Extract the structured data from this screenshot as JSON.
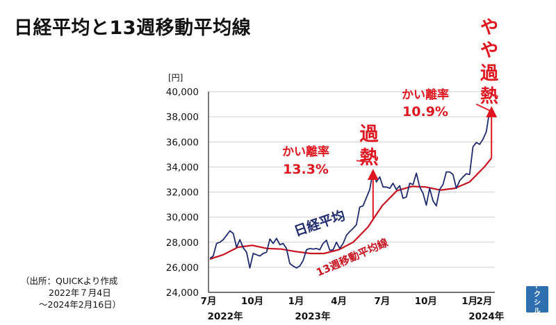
{
  "title": "日経平均と13週移動平均線",
  "source": {
    "line1": "（出所：QUICKより作成",
    "line2": "2022年７月4日",
    "line3": "～2024年2月16日）"
  },
  "logo_text": [
    "ト",
    "ク",
    "シ",
    "ル"
  ],
  "colors": {
    "nikkei": "#1f2a6e",
    "ma13": "#c8101e",
    "annotation": "#e0151f",
    "grid": "#cfcfcf"
  },
  "chart_data": {
    "type": "line",
    "yunit": "[円]",
    "ylim": [
      24000,
      40000
    ],
    "yticks": [
      24000,
      26000,
      28000,
      30000,
      32000,
      34000,
      36000,
      38000,
      40000
    ],
    "ytick_labels": [
      "24,000",
      "26,000",
      "28,000",
      "30,000",
      "32,000",
      "34,000",
      "36,000",
      "38,000",
      "40,000"
    ],
    "xlim": [
      "2022-07-01",
      "2024-02-23"
    ],
    "xticks": [
      {
        "date": "2022-07-01",
        "label": "7月",
        "year": "2022年"
      },
      {
        "date": "2022-10-01",
        "label": "10月",
        "year": ""
      },
      {
        "date": "2023-01-01",
        "label": "1月",
        "year": "2023年"
      },
      {
        "date": "2023-04-01",
        "label": "4月",
        "year": ""
      },
      {
        "date": "2023-07-01",
        "label": "7月",
        "year": ""
      },
      {
        "date": "2023-10-01",
        "label": "10月",
        "year": ""
      },
      {
        "date": "2024-01-01",
        "label": "1月",
        "year": "2024年"
      },
      {
        "date": "2024-02-01",
        "label": "2月",
        "year": ""
      }
    ],
    "grid": "horizontal",
    "series": [
      {
        "name": "日経平均",
        "values": [
          [
            "2022-07-04",
            26700
          ],
          [
            "2022-07-11",
            26900
          ],
          [
            "2022-07-18",
            27900
          ],
          [
            "2022-07-25",
            28000
          ],
          [
            "2022-08-01",
            28200
          ],
          [
            "2022-08-08",
            28550
          ],
          [
            "2022-08-15",
            28900
          ],
          [
            "2022-08-22",
            28700
          ],
          [
            "2022-08-29",
            27600
          ],
          [
            "2022-09-05",
            28200
          ],
          [
            "2022-09-12",
            27550
          ],
          [
            "2022-09-19",
            27200
          ],
          [
            "2022-09-26",
            25950
          ],
          [
            "2022-10-03",
            27100
          ],
          [
            "2022-10-10",
            27000
          ],
          [
            "2022-10-17",
            26900
          ],
          [
            "2022-10-24",
            27100
          ],
          [
            "2022-10-31",
            27200
          ],
          [
            "2022-11-07",
            28250
          ],
          [
            "2022-11-14",
            27900
          ],
          [
            "2022-11-21",
            28300
          ],
          [
            "2022-11-28",
            27800
          ],
          [
            "2022-12-05",
            27900
          ],
          [
            "2022-12-12",
            27500
          ],
          [
            "2022-12-19",
            26300
          ],
          [
            "2022-12-26",
            26100
          ],
          [
            "2023-01-02",
            25950
          ],
          [
            "2023-01-09",
            26100
          ],
          [
            "2023-01-16",
            26550
          ],
          [
            "2023-01-23",
            27400
          ],
          [
            "2023-01-30",
            27500
          ],
          [
            "2023-02-06",
            27450
          ],
          [
            "2023-02-13",
            27500
          ],
          [
            "2023-02-20",
            27400
          ],
          [
            "2023-02-27",
            27900
          ],
          [
            "2023-03-06",
            28150
          ],
          [
            "2023-03-13",
            27350
          ],
          [
            "2023-03-20",
            27400
          ],
          [
            "2023-03-27",
            28000
          ],
          [
            "2023-04-03",
            27500
          ],
          [
            "2023-04-10",
            27900
          ],
          [
            "2023-04-17",
            28550
          ],
          [
            "2023-04-24",
            28850
          ],
          [
            "2023-05-01",
            29100
          ],
          [
            "2023-05-08",
            29400
          ],
          [
            "2023-05-15",
            30800
          ],
          [
            "2023-05-22",
            30900
          ],
          [
            "2023-05-29",
            31550
          ],
          [
            "2023-06-05",
            32200
          ],
          [
            "2023-06-12",
            33700
          ],
          [
            "2023-06-19",
            32800
          ],
          [
            "2023-06-26",
            33200
          ],
          [
            "2023-07-03",
            32400
          ],
          [
            "2023-07-10",
            32400
          ],
          [
            "2023-07-17",
            32300
          ],
          [
            "2023-07-24",
            32700
          ],
          [
            "2023-07-31",
            32200
          ],
          [
            "2023-08-07",
            32500
          ],
          [
            "2023-08-14",
            31500
          ],
          [
            "2023-08-21",
            31600
          ],
          [
            "2023-08-28",
            32700
          ],
          [
            "2023-09-04",
            32600
          ],
          [
            "2023-09-11",
            33500
          ],
          [
            "2023-09-18",
            32400
          ],
          [
            "2023-09-25",
            31900
          ],
          [
            "2023-10-02",
            30950
          ],
          [
            "2023-10-09",
            32300
          ],
          [
            "2023-10-16",
            31300
          ],
          [
            "2023-10-23",
            30900
          ],
          [
            "2023-10-30",
            32200
          ],
          [
            "2023-11-06",
            32600
          ],
          [
            "2023-11-13",
            33600
          ],
          [
            "2023-11-20",
            33600
          ],
          [
            "2023-11-27",
            33400
          ],
          [
            "2023-12-04",
            32300
          ],
          [
            "2023-12-11",
            32900
          ],
          [
            "2023-12-18",
            33200
          ],
          [
            "2023-12-25",
            33450
          ],
          [
            "2024-01-01",
            33400
          ],
          [
            "2024-01-08",
            35600
          ],
          [
            "2024-01-15",
            35950
          ],
          [
            "2024-01-22",
            35800
          ],
          [
            "2024-01-29",
            36200
          ],
          [
            "2024-02-05",
            36800
          ],
          [
            "2024-02-12",
            38500
          ]
        ]
      },
      {
        "name": "13週移動平均線",
        "values": [
          [
            "2022-07-04",
            26650
          ],
          [
            "2022-08-01",
            27000
          ],
          [
            "2022-09-01",
            27600
          ],
          [
            "2022-10-01",
            27750
          ],
          [
            "2022-11-01",
            27500
          ],
          [
            "2022-12-01",
            27450
          ],
          [
            "2023-01-01",
            27250
          ],
          [
            "2023-02-01",
            27100
          ],
          [
            "2023-03-01",
            27100
          ],
          [
            "2023-04-01",
            27400
          ],
          [
            "2023-05-01",
            28000
          ],
          [
            "2023-06-01",
            29200
          ],
          [
            "2023-07-01",
            30900
          ],
          [
            "2023-08-01",
            32100
          ],
          [
            "2023-09-01",
            32450
          ],
          [
            "2023-10-01",
            32400
          ],
          [
            "2023-11-01",
            32150
          ],
          [
            "2023-12-01",
            32300
          ],
          [
            "2024-01-01",
            32800
          ],
          [
            "2024-02-01",
            34000
          ],
          [
            "2024-02-16",
            34700
          ]
        ]
      }
    ],
    "annotations": [
      {
        "type": "arrow",
        "date": "2023-06-12",
        "from": 29900,
        "to": 33400
      },
      {
        "type": "arrow",
        "date": "2024-02-16",
        "from": 34700,
        "to": 38400
      },
      {
        "type": "pointer",
        "from_date": "2023-05-08",
        "from_value": 34500,
        "to_date": "2023-06-07",
        "to_value": 34400
      },
      {
        "type": "pointer",
        "from_date": "2024-01-15",
        "from_value": 39000,
        "to_date": "2024-02-12",
        "to_value": 38500
      }
    ],
    "labels": {
      "gap1_title": "かい離率",
      "gap1_value": "13.3%",
      "gap2_title": "かい離率",
      "gap2_value": "10.9%",
      "overheat1": [
        "過",
        "熱"
      ],
      "overheat2": [
        "や",
        "や",
        "過",
        "熱"
      ],
      "nikkei_label": "日経平均",
      "ma_label": "13週移動平均線"
    }
  }
}
